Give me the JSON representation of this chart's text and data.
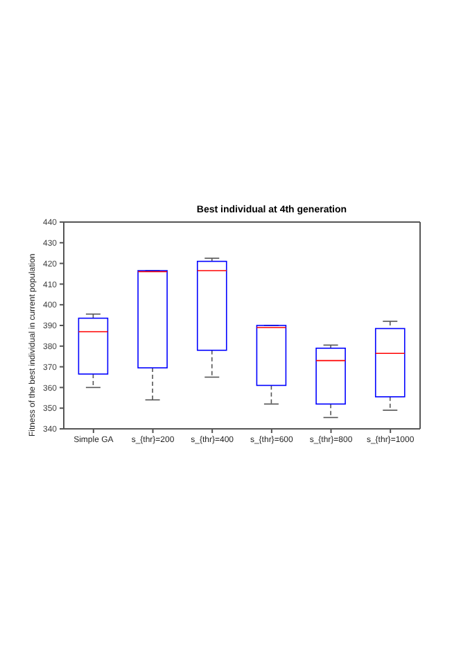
{
  "chart_data": {
    "type": "box",
    "title": "Best individual at 4th generation",
    "ylabel": "Fitness of the best individual in current population",
    "categories": [
      "Simple GA",
      "s_{thr}=200",
      "s_{thr}=400",
      "s_{thr}=600",
      "s_{thr}=800",
      "s_{thr}=1000"
    ],
    "boxes": [
      {
        "low": 360,
        "q1": 366.5,
        "median": 387,
        "q3": 393.5,
        "high": 395.5
      },
      {
        "low": 354,
        "q1": 369.5,
        "median": 416,
        "q3": 416.5,
        "high": 416.5
      },
      {
        "low": 365,
        "q1": 378,
        "median": 416.5,
        "q3": 421,
        "high": 422.5
      },
      {
        "low": 352,
        "q1": 361,
        "median": 389,
        "q3": 390,
        "high": 390
      },
      {
        "low": 345.5,
        "q1": 352,
        "median": 373,
        "q3": 379,
        "high": 380.5
      },
      {
        "low": 349,
        "q1": 355.5,
        "median": 376.5,
        "q3": 388.5,
        "high": 392
      }
    ],
    "color": "#0000ff",
    "ylim": [
      340,
      440
    ],
    "yticks": [
      340,
      350,
      360,
      370,
      380,
      390,
      400,
      410,
      420,
      430,
      440
    ],
    "grid": false
  }
}
